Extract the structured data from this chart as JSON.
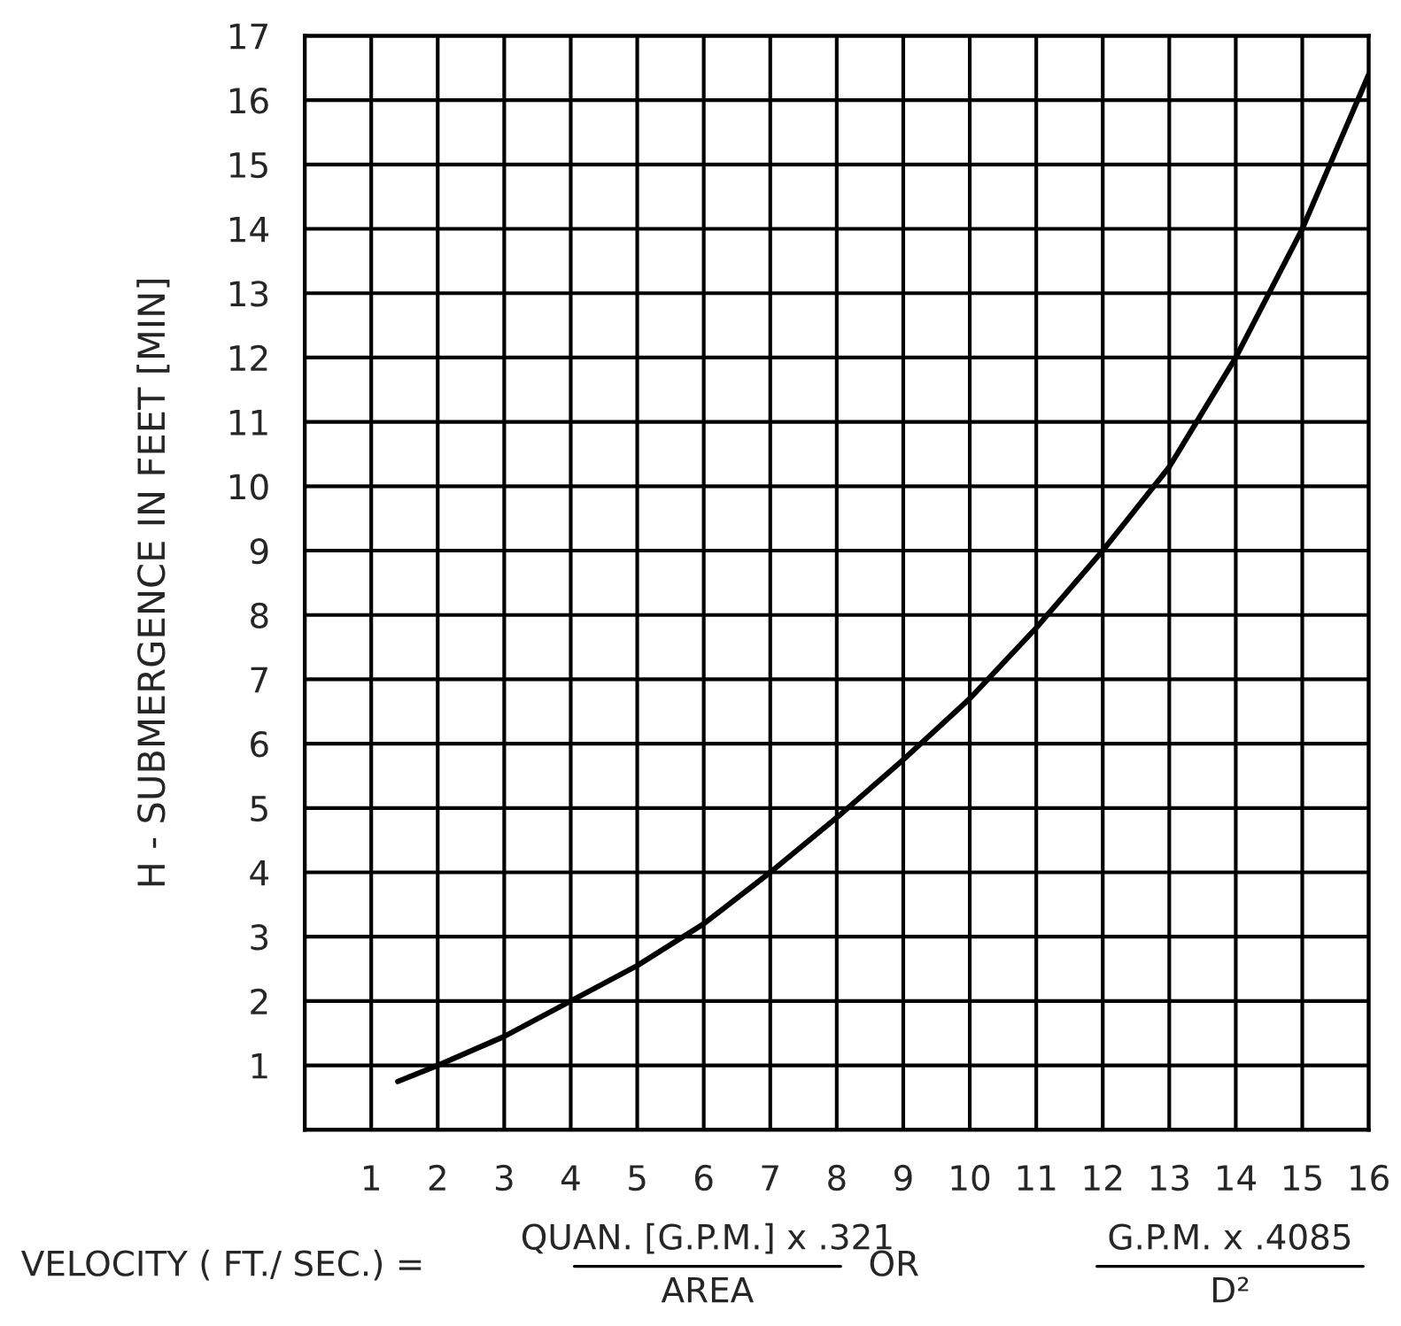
{
  "chart_data": {
    "type": "line",
    "xlabel": "VELOCITY ( FT./ SEC.) =",
    "ylabel": "H - SUBMERGENCE IN FEET [MIN]",
    "x": [
      1.4,
      2,
      3,
      4,
      5,
      6,
      7,
      8,
      9,
      10,
      11,
      12,
      13,
      14,
      15,
      16
    ],
    "series": [
      {
        "color": "#000000",
        "values": [
          0.75,
          1,
          1.45,
          2,
          2.55,
          3.2,
          4,
          4.85,
          5.75,
          6.7,
          7.8,
          9,
          10.3,
          12,
          14,
          16.4
        ]
      }
    ],
    "xlim": [
      0,
      16
    ],
    "ylim": [
      0,
      17
    ],
    "xticks": [
      1,
      2,
      3,
      4,
      5,
      6,
      7,
      8,
      9,
      10,
      11,
      12,
      13,
      14,
      15,
      16
    ],
    "yticks": [
      1,
      2,
      3,
      4,
      5,
      6,
      7,
      8,
      9,
      10,
      11,
      12,
      13,
      14,
      15,
      16,
      17
    ],
    "grid": true,
    "marker": "none",
    "line_style": "solid",
    "annotations": [
      "QUAN. [G.P.M.] x .321",
      "AREA",
      "OR",
      "G.P.M. x .4085",
      "D²"
    ]
  }
}
